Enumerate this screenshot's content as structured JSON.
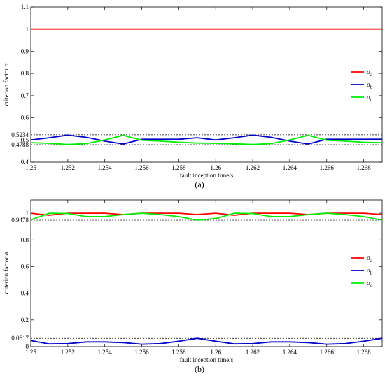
{
  "chart_data": [
    {
      "type": "line",
      "panel_label": "(a)",
      "xlabel": "fault inception time/s",
      "ylabel": "criterion factor σ",
      "xlim": [
        1.25,
        1.269
      ],
      "ylim": [
        0.4,
        1.1
      ],
      "xticks": [
        1.25,
        1.252,
        1.254,
        1.256,
        1.258,
        1.26,
        1.262,
        1.264,
        1.266,
        1.268
      ],
      "xtick_labels": [
        "1.25",
        "1.252",
        "1.254",
        "1.256",
        "1.258",
        "1.26",
        "1.262",
        "1.264",
        "1.266",
        "1.268"
      ],
      "yticks": [
        0.4,
        0.5,
        0.6,
        0.7,
        0.8,
        0.9,
        1.0,
        1.1
      ],
      "ytick_labels": [
        "0.4",
        "0.5",
        "0.6",
        "0.7",
        "0.8",
        "0.9",
        "1",
        "1.1"
      ],
      "extra_yticks": [
        0.5234,
        0.4788
      ],
      "extra_ytick_labels": [
        "0.5234",
        "0.4788"
      ],
      "reference_lines": [
        0.5234,
        0.4788
      ],
      "legend_position": "right-middle",
      "series": [
        {
          "name": "σ",
          "sub": "a",
          "color": "#ff0000",
          "x": [
            1.25,
            1.269
          ],
          "y": [
            1.0,
            1.0
          ]
        },
        {
          "name": "σ",
          "sub": "b",
          "color": "#0000cc",
          "x": [
            1.25,
            1.251,
            1.252,
            1.253,
            1.254,
            1.255,
            1.256,
            1.257,
            1.258,
            1.259,
            1.26,
            1.261,
            1.262,
            1.263,
            1.264,
            1.265,
            1.266,
            1.267,
            1.268,
            1.269
          ],
          "y": [
            0.5,
            0.51,
            0.522,
            0.512,
            0.495,
            0.482,
            0.503,
            0.503,
            0.503,
            0.51,
            0.5,
            0.51,
            0.522,
            0.512,
            0.495,
            0.482,
            0.503,
            0.503,
            0.503,
            0.503
          ]
        },
        {
          "name": "σ",
          "sub": "c",
          "color": "#00ee00",
          "x": [
            1.25,
            1.251,
            1.252,
            1.253,
            1.254,
            1.255,
            1.256,
            1.257,
            1.258,
            1.259,
            1.26,
            1.261,
            1.262,
            1.263,
            1.264,
            1.265,
            1.266,
            1.267,
            1.268,
            1.269
          ],
          "y": [
            0.488,
            0.485,
            0.48,
            0.484,
            0.5,
            0.521,
            0.499,
            0.495,
            0.49,
            0.486,
            0.485,
            0.483,
            0.48,
            0.484,
            0.5,
            0.521,
            0.499,
            0.495,
            0.49,
            0.488
          ]
        }
      ]
    },
    {
      "type": "line",
      "panel_label": "(b)",
      "xlabel": "fault inception time/s",
      "ylabel": "criterion factor σ",
      "xlim": [
        1.25,
        1.269
      ],
      "ylim": [
        0,
        1.1
      ],
      "xticks": [
        1.25,
        1.252,
        1.254,
        1.256,
        1.258,
        1.26,
        1.262,
        1.264,
        1.266,
        1.268
      ],
      "xtick_labels": [
        "1.25",
        "1.252",
        "1.254",
        "1.256",
        "1.258",
        "1.26",
        "1.262",
        "1.264",
        "1.266",
        "1.268"
      ],
      "yticks": [
        0,
        0.2,
        0.4,
        0.6,
        0.8,
        1.0
      ],
      "ytick_labels": [
        "0",
        "0.2",
        "0.4",
        "0.6",
        "0.8",
        "1"
      ],
      "extra_yticks": [
        0.9478,
        0.0617
      ],
      "extra_ytick_labels": [
        "0.9478",
        "0.0617"
      ],
      "reference_lines": [
        0.9478,
        0.0617
      ],
      "legend_position": "right-middle",
      "series": [
        {
          "name": "σ",
          "sub": "a",
          "color": "#ff0000",
          "x": [
            1.25,
            1.251,
            1.252,
            1.253,
            1.254,
            1.255,
            1.256,
            1.257,
            1.258,
            1.259,
            1.26,
            1.261,
            1.262,
            1.263,
            1.264,
            1.265,
            1.266,
            1.267,
            1.268,
            1.269
          ],
          "y": [
            1.0,
            0.985,
            1.0,
            1.0,
            1.0,
            0.99,
            1.0,
            1.0,
            1.0,
            0.99,
            1.0,
            0.985,
            1.0,
            1.0,
            1.0,
            0.99,
            1.0,
            1.0,
            1.0,
            0.99
          ]
        },
        {
          "name": "σ",
          "sub": "b",
          "color": "#0000cc",
          "x": [
            1.25,
            1.251,
            1.252,
            1.253,
            1.254,
            1.255,
            1.256,
            1.257,
            1.258,
            1.259,
            1.26,
            1.261,
            1.262,
            1.263,
            1.264,
            1.265,
            1.266,
            1.267,
            1.268,
            1.269
          ],
          "y": [
            0.045,
            0.02,
            0.022,
            0.035,
            0.035,
            0.03,
            0.018,
            0.022,
            0.04,
            0.062,
            0.04,
            0.02,
            0.022,
            0.035,
            0.035,
            0.03,
            0.018,
            0.022,
            0.04,
            0.062
          ]
        },
        {
          "name": "σ",
          "sub": "c",
          "color": "#00ee00",
          "x": [
            1.25,
            1.251,
            1.252,
            1.253,
            1.254,
            1.255,
            1.256,
            1.257,
            1.258,
            1.259,
            1.26,
            1.261,
            1.262,
            1.263,
            1.264,
            1.265,
            1.266,
            1.267,
            1.268,
            1.269
          ],
          "y": [
            0.95,
            1.0,
            0.998,
            0.975,
            0.975,
            0.99,
            1.0,
            0.99,
            0.975,
            0.948,
            0.96,
            1.0,
            0.998,
            0.975,
            0.975,
            0.99,
            1.0,
            0.99,
            0.975,
            0.948
          ]
        }
      ]
    }
  ]
}
